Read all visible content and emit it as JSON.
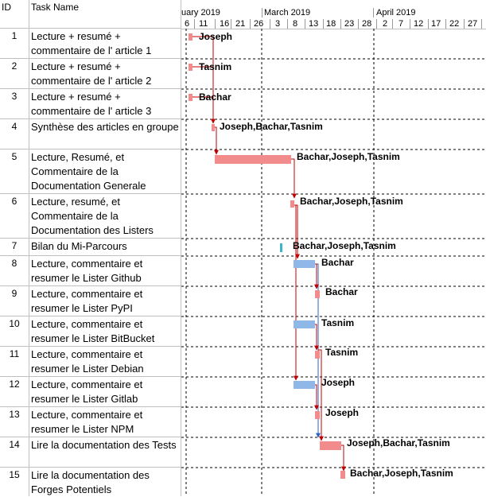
{
  "header": {
    "id_label": "ID",
    "name_label": "Task Name"
  },
  "timescale": {
    "months": [
      "uary 2019",
      "March 2019",
      "April 2019"
    ],
    "weeks": [
      "6",
      "11",
      "16",
      "21",
      "26",
      "3",
      "8",
      "13",
      "18",
      "23",
      "28",
      "2",
      "7",
      "12",
      "17",
      "22",
      "27"
    ]
  },
  "tasks": [
    {
      "id": "1",
      "name": "Lecture + resumé + commentaire de l' article 1",
      "resources": "Joseph"
    },
    {
      "id": "2",
      "name": "Lecture + resumé + commentaire de l' article 2",
      "resources": "Tasnim"
    },
    {
      "id": "3",
      "name": "Lecture + resumé + commentaire de l' article 3",
      "resources": "Bachar"
    },
    {
      "id": "4",
      "name": "Synthèse des articles en groupe",
      "resources": "Joseph,Bachar,Tasnim"
    },
    {
      "id": "5",
      "name": "Lecture, Resumé, et Commentaire de la Documentation Generale",
      "resources": "Bachar,Joseph,Tasnim"
    },
    {
      "id": "6",
      "name": "Lecture, resumé, et Commentaire de la Documentation des Listers",
      "resources": "Bachar,Joseph,Tasnim"
    },
    {
      "id": "7",
      "name": "Bilan du Mi-Parcours",
      "resources": "Bachar,Joseph,Tasnim"
    },
    {
      "id": "8",
      "name": "Lecture, commentaire et resumer le Lister Github",
      "resources": "Bachar"
    },
    {
      "id": "9",
      "name": "Lecture, commentaire et resumer le Lister PyPI",
      "resources": "Bachar"
    },
    {
      "id": "10",
      "name": "Lecture, commentaire et resumer le Lister BitBucket",
      "resources": "Tasnim"
    },
    {
      "id": "11",
      "name": "Lecture, commentaire et resumer le Lister Debian",
      "resources": "Tasnim"
    },
    {
      "id": "12",
      "name": "Lecture, commentaire et resumer le Lister Gitlab",
      "resources": "Joseph"
    },
    {
      "id": "13",
      "name": "Lecture, commentaire et resumer le Lister NPM",
      "resources": "Joseph"
    },
    {
      "id": "14",
      "name": "Lire la documentation des Tests",
      "resources": "Joseph,Bachar,Tasnim"
    },
    {
      "id": "15",
      "name": "Lire la documentation des Forges Potentiels",
      "resources": "Bachar,Joseph,Tasnim"
    }
  ],
  "colors": {
    "normal_bar": "#f28b8b",
    "selected_bar": "#8fb8e8",
    "milestone": "#3bb5c9",
    "link": "#c00000"
  }
}
